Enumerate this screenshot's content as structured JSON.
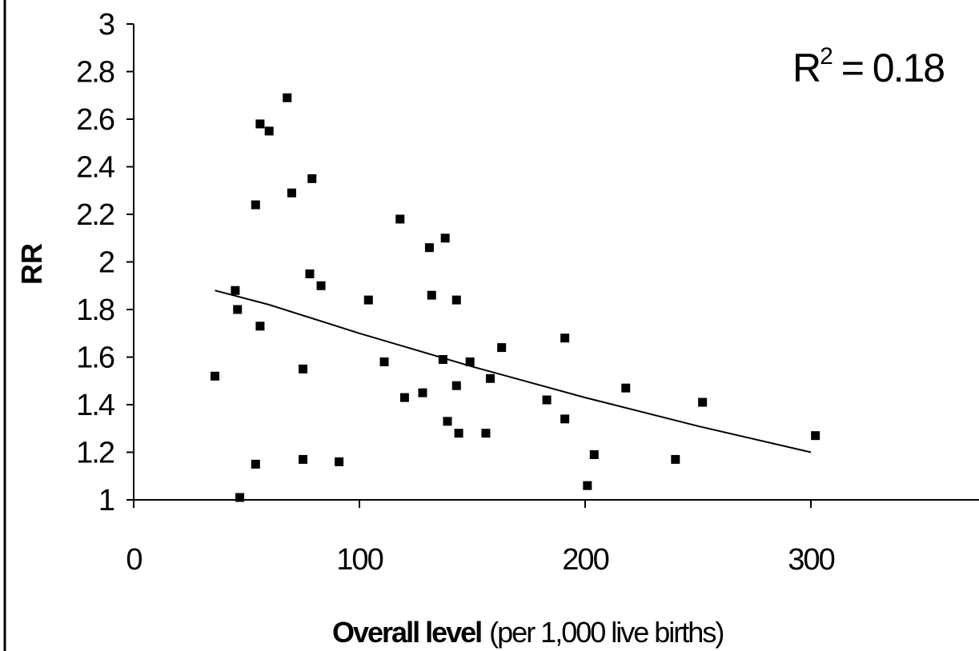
{
  "chart_data": {
    "type": "scatter",
    "xlabel_bold": "Overall level",
    "xlabel_rest": "(per 1,000 live births)",
    "ylabel": "RR",
    "xlim": [
      0,
      370
    ],
    "ylim": [
      1,
      3
    ],
    "x_ticks": [
      "0",
      "100",
      "200",
      "300"
    ],
    "y_ticks": [
      "1",
      "1.2",
      "1.4",
      "1.6",
      "1.8",
      "2",
      "2.2",
      "2.4",
      "2.6",
      "2.8",
      "3"
    ],
    "annotation": {
      "base": "R",
      "sup": "2",
      "rest": " = 0.18"
    },
    "points": [
      {
        "x": 36,
        "y": 1.52
      },
      {
        "x": 45,
        "y": 1.88
      },
      {
        "x": 46,
        "y": 1.8
      },
      {
        "x": 47,
        "y": 1.01
      },
      {
        "x": 54,
        "y": 2.24
      },
      {
        "x": 54,
        "y": 1.15
      },
      {
        "x": 56,
        "y": 2.58
      },
      {
        "x": 56,
        "y": 1.73
      },
      {
        "x": 60,
        "y": 2.55
      },
      {
        "x": 68,
        "y": 2.69
      },
      {
        "x": 70,
        "y": 2.29
      },
      {
        "x": 75,
        "y": 1.55
      },
      {
        "x": 75,
        "y": 1.17
      },
      {
        "x": 78,
        "y": 1.95
      },
      {
        "x": 79,
        "y": 2.35
      },
      {
        "x": 83,
        "y": 1.9
      },
      {
        "x": 91,
        "y": 1.16
      },
      {
        "x": 104,
        "y": 1.84
      },
      {
        "x": 111,
        "y": 1.58
      },
      {
        "x": 118,
        "y": 2.18
      },
      {
        "x": 120,
        "y": 1.43
      },
      {
        "x": 128,
        "y": 1.45
      },
      {
        "x": 131,
        "y": 2.06
      },
      {
        "x": 132,
        "y": 1.86
      },
      {
        "x": 137,
        "y": 1.59
      },
      {
        "x": 138,
        "y": 2.1
      },
      {
        "x": 139,
        "y": 1.33
      },
      {
        "x": 143,
        "y": 1.84
      },
      {
        "x": 143,
        "y": 1.48
      },
      {
        "x": 144,
        "y": 1.28
      },
      {
        "x": 149,
        "y": 1.58
      },
      {
        "x": 156,
        "y": 1.28
      },
      {
        "x": 158,
        "y": 1.51
      },
      {
        "x": 163,
        "y": 1.64
      },
      {
        "x": 183,
        "y": 1.42
      },
      {
        "x": 191,
        "y": 1.68
      },
      {
        "x": 191,
        "y": 1.34
      },
      {
        "x": 201,
        "y": 1.06
      },
      {
        "x": 204,
        "y": 1.19
      },
      {
        "x": 218,
        "y": 1.47
      },
      {
        "x": 240,
        "y": 1.17
      },
      {
        "x": 252,
        "y": 1.41
      },
      {
        "x": 302,
        "y": 1.27
      }
    ],
    "trendline": [
      {
        "x": 36,
        "y": 1.88
      },
      {
        "x": 60,
        "y": 1.82
      },
      {
        "x": 100,
        "y": 1.7
      },
      {
        "x": 150,
        "y": 1.56
      },
      {
        "x": 200,
        "y": 1.43
      },
      {
        "x": 250,
        "y": 1.31
      },
      {
        "x": 300,
        "y": 1.2
      }
    ],
    "grid": false,
    "legend": "none"
  }
}
